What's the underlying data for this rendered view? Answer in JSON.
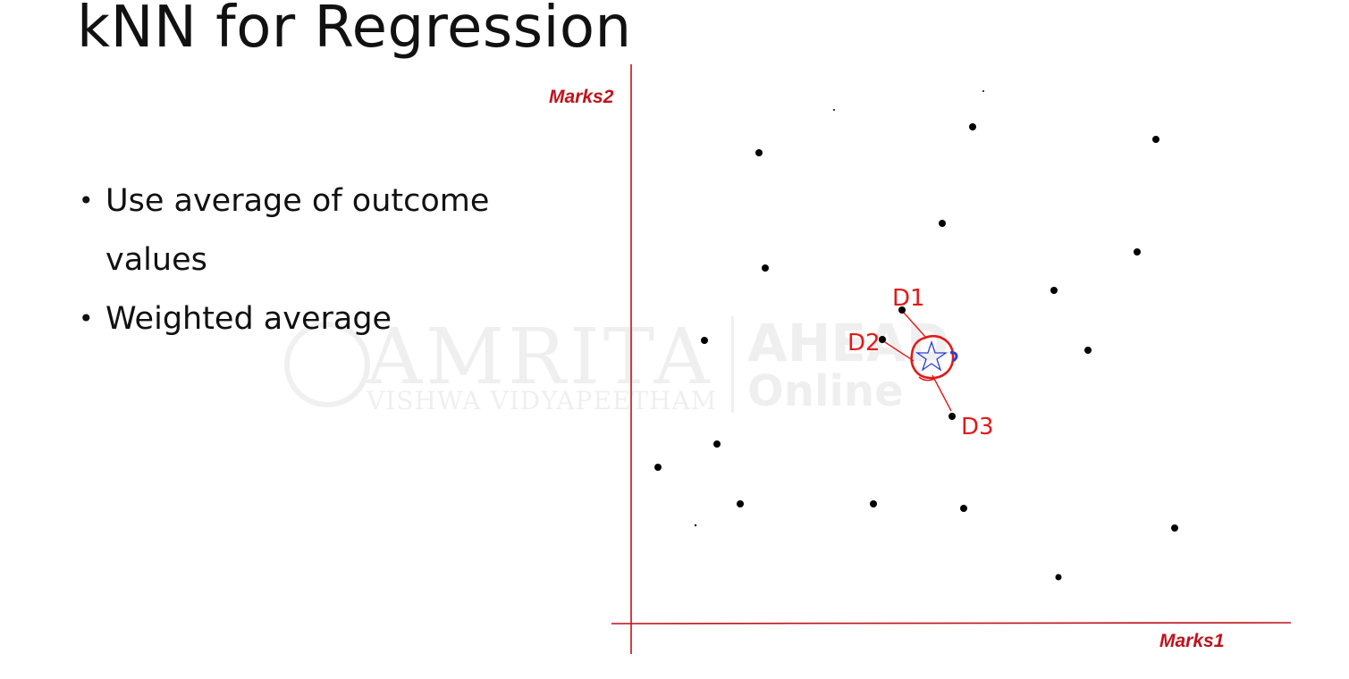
{
  "slide": {
    "title": "kNN for Regression",
    "bullets": [
      "Use average of outcome values",
      "Weighted average"
    ]
  },
  "watermark": {
    "brand": "AMRITA",
    "subtitle": "VISHWA VIDYAPEETHAM",
    "partner_top": "AHEAD",
    "partner_bottom": "Online"
  },
  "diagram": {
    "x_axis_label": "Marks1",
    "y_axis_label": "Marks2",
    "annotations": {
      "d1": "D1",
      "d2": "D2",
      "d3": "D3"
    },
    "colors": {
      "axis": "#c0131d",
      "points": "#000000",
      "annotation": "#e11a1a",
      "query_star": "#2b3fd6"
    },
    "query_marker": "star-icon"
  }
}
